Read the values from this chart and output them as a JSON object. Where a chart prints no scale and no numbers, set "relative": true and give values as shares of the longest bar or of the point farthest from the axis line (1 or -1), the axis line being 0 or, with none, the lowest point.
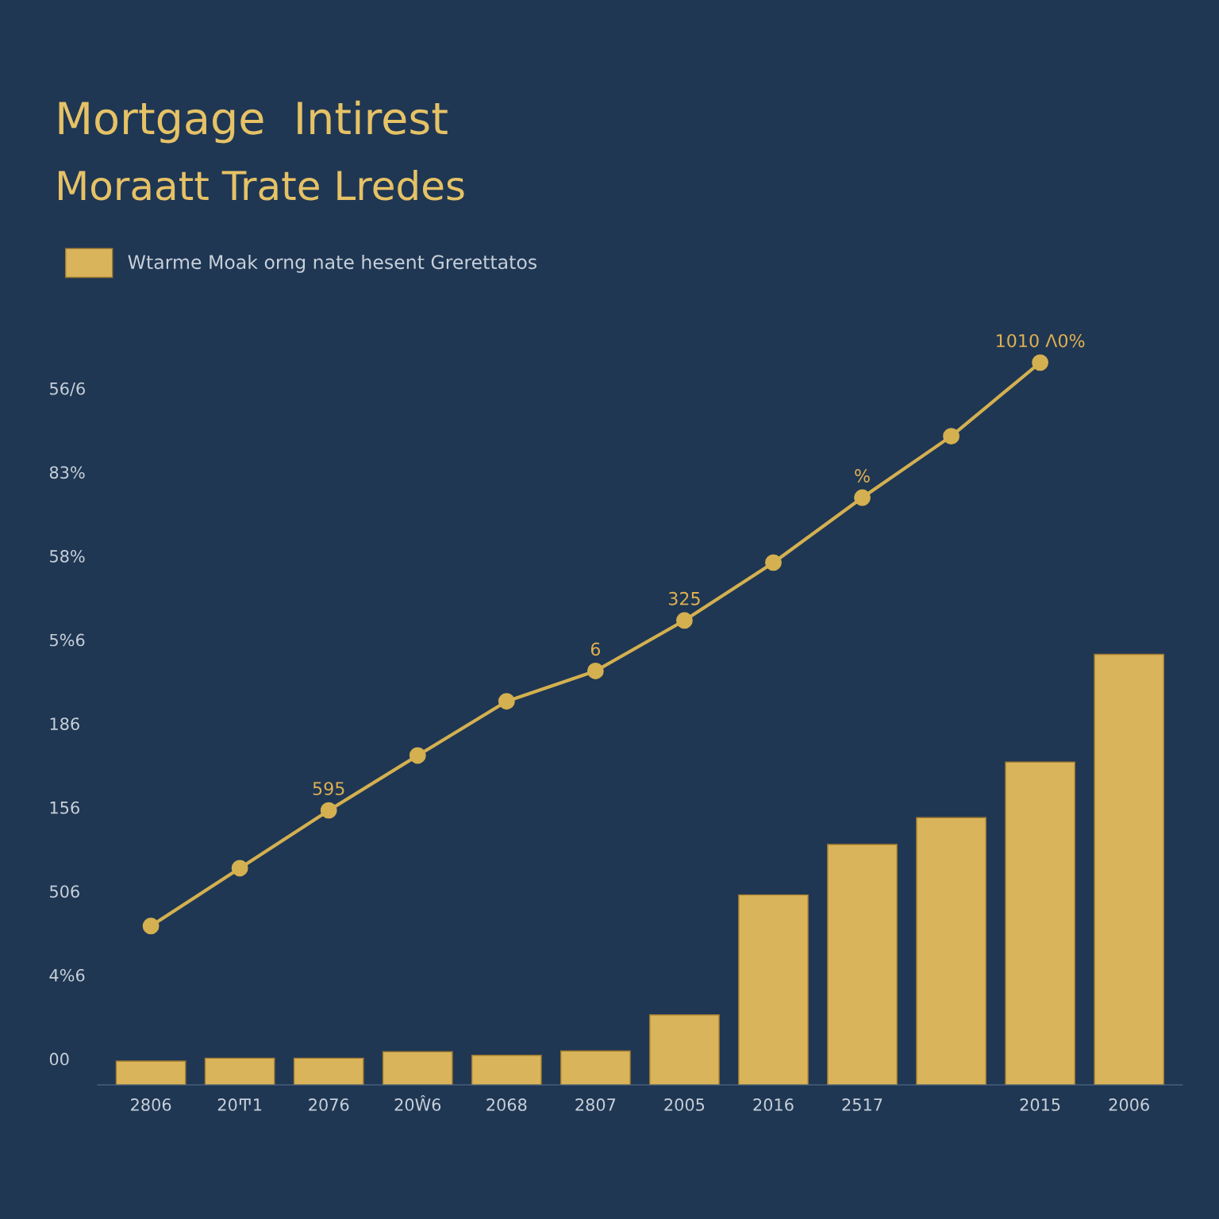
{
  "chart_data": {
    "type": "bar",
    "title": "Mortgage  Intirest",
    "subtitle": "Moraatt Trate Lredes",
    "relative": true,
    "categories": [
      "2806",
      "20Ͳ1",
      "2076",
      "20Ŵ6",
      "2068",
      "2807",
      "2005",
      "2016",
      "2517",
      null,
      "2015",
      "2006"
    ],
    "series": [
      {
        "name": "Wtarme Moak orng nate hesent Grerettatos",
        "color": "#d9b45a",
        "values": [
          0.033,
          0.037,
          0.037,
          0.046,
          0.041,
          0.047,
          0.097,
          0.263,
          0.333,
          0.37,
          0.447,
          0.596
        ]
      },
      {
        "type": "line",
        "color": "#d4b050",
        "marker": "circle",
        "values": [
          0.22,
          0.3,
          0.38,
          0.456,
          0.531,
          0.573,
          0.643,
          0.723,
          0.813,
          0.898,
          1.0,
          null
        ]
      }
    ],
    "annotations": [
      {
        "text": "595",
        "x": "2076",
        "y": 0.38
      },
      {
        "text": "6",
        "x": "2807",
        "y": 0.573
      },
      {
        "text": "325",
        "x": "2005",
        "y": 0.643
      },
      {
        "text": "%",
        "x": "2517",
        "y": 0.813
      },
      {
        "text": "1010 Λ0%",
        "y": 1.0
      },
      "56/6",
      "83%",
      "58%",
      "5%6",
      "186",
      "156",
      "506",
      "4%6",
      "00"
    ],
    "legend": "top left"
  }
}
